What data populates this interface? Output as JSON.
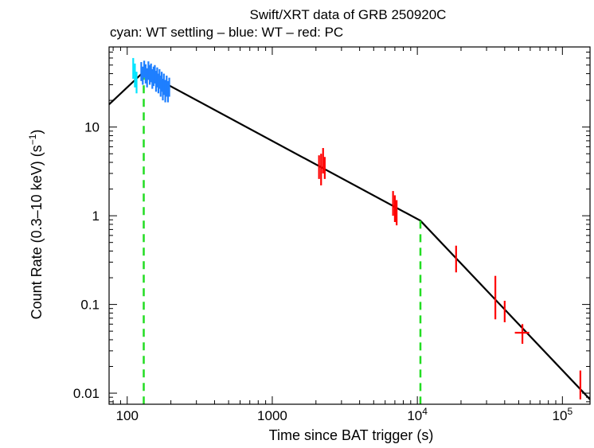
{
  "chart_data": {
    "type": "scatter",
    "title": "Swift/XRT data of GRB 250920C",
    "subtitle": "cyan: WT settling – blue: WT – red: PC",
    "xlabel": "Time since BAT trigger (s)",
    "ylabel_text": "Count Rate (0.3–10 keV) (s",
    "ylabel_exponent": "−1",
    "ylabel_close": ")",
    "xscale": "log",
    "yscale": "log",
    "xlim": [
      75,
      155000
    ],
    "ylim": [
      0.0075,
      80
    ],
    "x_ticks": [
      {
        "value": 100,
        "label": "100",
        "sup": ""
      },
      {
        "value": 1000,
        "label": "1000",
        "sup": ""
      },
      {
        "value": 10000,
        "label": "10",
        "sup": "4"
      },
      {
        "value": 100000,
        "label": "10",
        "sup": "5"
      }
    ],
    "y_ticks": [
      {
        "value": 0.01,
        "label": "0.01"
      },
      {
        "value": 0.1,
        "label": "0.1"
      },
      {
        "value": 1,
        "label": "1"
      },
      {
        "value": 10,
        "label": "10"
      }
    ],
    "colors": {
      "wt_settling": "#00e5ff",
      "wt": "#1e7fff",
      "pc": "#ff0000",
      "model": "#000000",
      "breaks": "#22dd22",
      "frame": "#000000"
    },
    "series": [
      {
        "name": "WT settling",
        "color_key": "wt_settling",
        "points": [
          {
            "x": 110,
            "y": 48,
            "ylo": 35,
            "yhi": 60
          },
          {
            "x": 113,
            "y": 40,
            "ylo": 28,
            "yhi": 52
          },
          {
            "x": 116,
            "y": 32,
            "ylo": 24,
            "yhi": 42
          }
        ]
      },
      {
        "name": "WT",
        "color_key": "wt",
        "points": [
          {
            "x": 125,
            "y": 42,
            "ylo": 33,
            "yhi": 54
          },
          {
            "x": 128,
            "y": 38,
            "ylo": 30,
            "yhi": 48
          },
          {
            "x": 131,
            "y": 45,
            "ylo": 36,
            "yhi": 56
          },
          {
            "x": 134,
            "y": 40,
            "ylo": 31,
            "yhi": 51
          },
          {
            "x": 137,
            "y": 36,
            "ylo": 28,
            "yhi": 46
          },
          {
            "x": 140,
            "y": 43,
            "ylo": 34,
            "yhi": 55
          },
          {
            "x": 143,
            "y": 39,
            "ylo": 30,
            "yhi": 50
          },
          {
            "x": 146,
            "y": 41,
            "ylo": 32,
            "yhi": 52
          },
          {
            "x": 149,
            "y": 35,
            "ylo": 27,
            "yhi": 45
          },
          {
            "x": 152,
            "y": 38,
            "ylo": 29,
            "yhi": 48
          },
          {
            "x": 155,
            "y": 40,
            "ylo": 31,
            "yhi": 50
          },
          {
            "x": 158,
            "y": 33,
            "ylo": 25,
            "yhi": 43
          },
          {
            "x": 161,
            "y": 37,
            "ylo": 28,
            "yhi": 47
          },
          {
            "x": 164,
            "y": 31,
            "ylo": 24,
            "yhi": 40
          },
          {
            "x": 167,
            "y": 35,
            "ylo": 27,
            "yhi": 45
          },
          {
            "x": 170,
            "y": 29,
            "ylo": 22,
            "yhi": 38
          },
          {
            "x": 173,
            "y": 33,
            "ylo": 25,
            "yhi": 42
          },
          {
            "x": 176,
            "y": 27,
            "ylo": 20,
            "yhi": 35
          },
          {
            "x": 179,
            "y": 31,
            "ylo": 23,
            "yhi": 40
          },
          {
            "x": 183,
            "y": 26,
            "ylo": 19,
            "yhi": 34
          },
          {
            "x": 187,
            "y": 30,
            "ylo": 22,
            "yhi": 38
          },
          {
            "x": 191,
            "y": 25,
            "ylo": 19,
            "yhi": 33
          },
          {
            "x": 195,
            "y": 28,
            "ylo": 22,
            "yhi": 36
          }
        ]
      },
      {
        "name": "PC",
        "color_key": "pc",
        "points": [
          {
            "x": 2100,
            "y": 3.6,
            "ylo": 2.6,
            "yhi": 4.8
          },
          {
            "x": 2170,
            "y": 3.3,
            "ylo": 2.2,
            "yhi": 5.0
          },
          {
            "x": 2240,
            "y": 4.2,
            "ylo": 3.0,
            "yhi": 5.8
          },
          {
            "x": 2300,
            "y": 3.5,
            "ylo": 2.6,
            "yhi": 4.6
          },
          {
            "x": 6800,
            "y": 1.4,
            "ylo": 1.0,
            "yhi": 1.9
          },
          {
            "x": 7000,
            "y": 1.2,
            "ylo": 0.85,
            "yhi": 1.7
          },
          {
            "x": 7200,
            "y": 1.1,
            "ylo": 0.78,
            "yhi": 1.5
          },
          {
            "x": 18500,
            "y": 0.33,
            "ylo": 0.23,
            "yhi": 0.46
          },
          {
            "x": 34500,
            "y": 0.12,
            "ylo": 0.068,
            "yhi": 0.21
          },
          {
            "x": 40000,
            "y": 0.085,
            "ylo": 0.063,
            "yhi": 0.11
          },
          {
            "x": 53000,
            "y": 0.048,
            "xlo": 47000,
            "xhi": 59000,
            "ylo": 0.036,
            "yhi": 0.06
          },
          {
            "x": 133000,
            "y": 0.0125,
            "ylo": 0.0085,
            "yhi": 0.018
          }
        ]
      }
    ],
    "model": {
      "name": "broken power law",
      "points": [
        {
          "x": 75,
          "y": 18
        },
        {
          "x": 130,
          "y": 42
        },
        {
          "x": 10500,
          "y": 0.88
        },
        {
          "x": 155000,
          "y": 0.0085
        }
      ]
    },
    "breaks": [
      130,
      10500
    ]
  }
}
